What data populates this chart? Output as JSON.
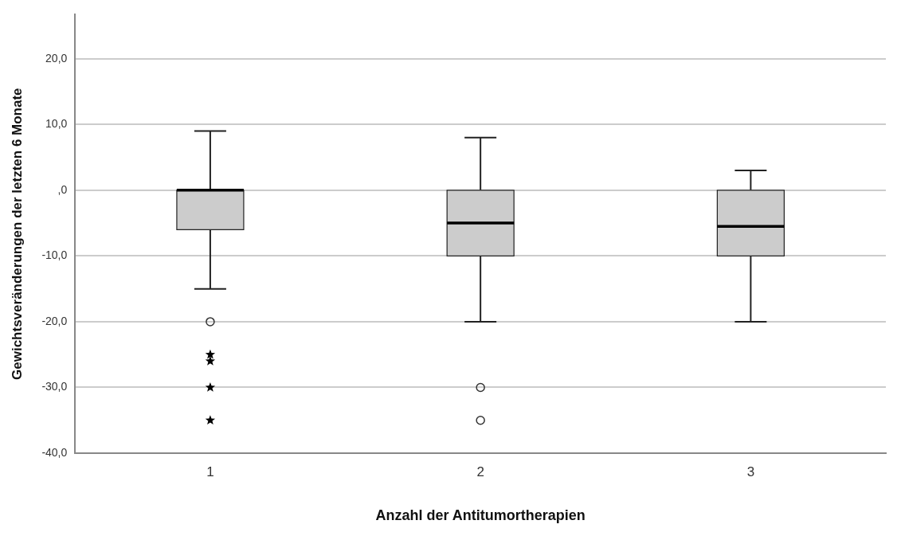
{
  "chart_data": {
    "type": "box",
    "xlabel": "Anzahl der Antitumortherapien",
    "ylabel": "Gewichtsveränderungen der letzten 6 Monate",
    "categories": [
      "1",
      "2",
      "3"
    ],
    "ylim": [
      -40,
      26.7
    ],
    "yticks": [
      {
        "value": -40,
        "label": "-40,0"
      },
      {
        "value": -30,
        "label": "-30,0"
      },
      {
        "value": -20,
        "label": "-20,0"
      },
      {
        "value": -10,
        "label": "-10,0"
      },
      {
        "value": 0,
        "label": ",0"
      },
      {
        "value": 10,
        "label": "10,0"
      },
      {
        "value": 20,
        "label": "20,0"
      }
    ],
    "grid": "y",
    "legend": false,
    "series": [
      {
        "type": "box",
        "color": "#cccccc",
        "boxes": [
          {
            "low": -15,
            "q1": -6,
            "median": 0,
            "q3": 0,
            "high": 9,
            "outliers": [
              -20
            ]
          },
          {
            "low": -20,
            "q1": -10,
            "median": -5,
            "q3": 0,
            "high": 8,
            "outliers": [
              -30,
              -35
            ]
          },
          {
            "low": -20,
            "q1": -10,
            "median": -5.5,
            "q3": 0,
            "high": 3
          }
        ]
      },
      {
        "type": "scatter",
        "marker": "star",
        "color": "#000000",
        "x": [
          "1",
          "1",
          "1",
          "1"
        ],
        "values": [
          -25,
          -26,
          -30,
          -35
        ]
      }
    ]
  }
}
